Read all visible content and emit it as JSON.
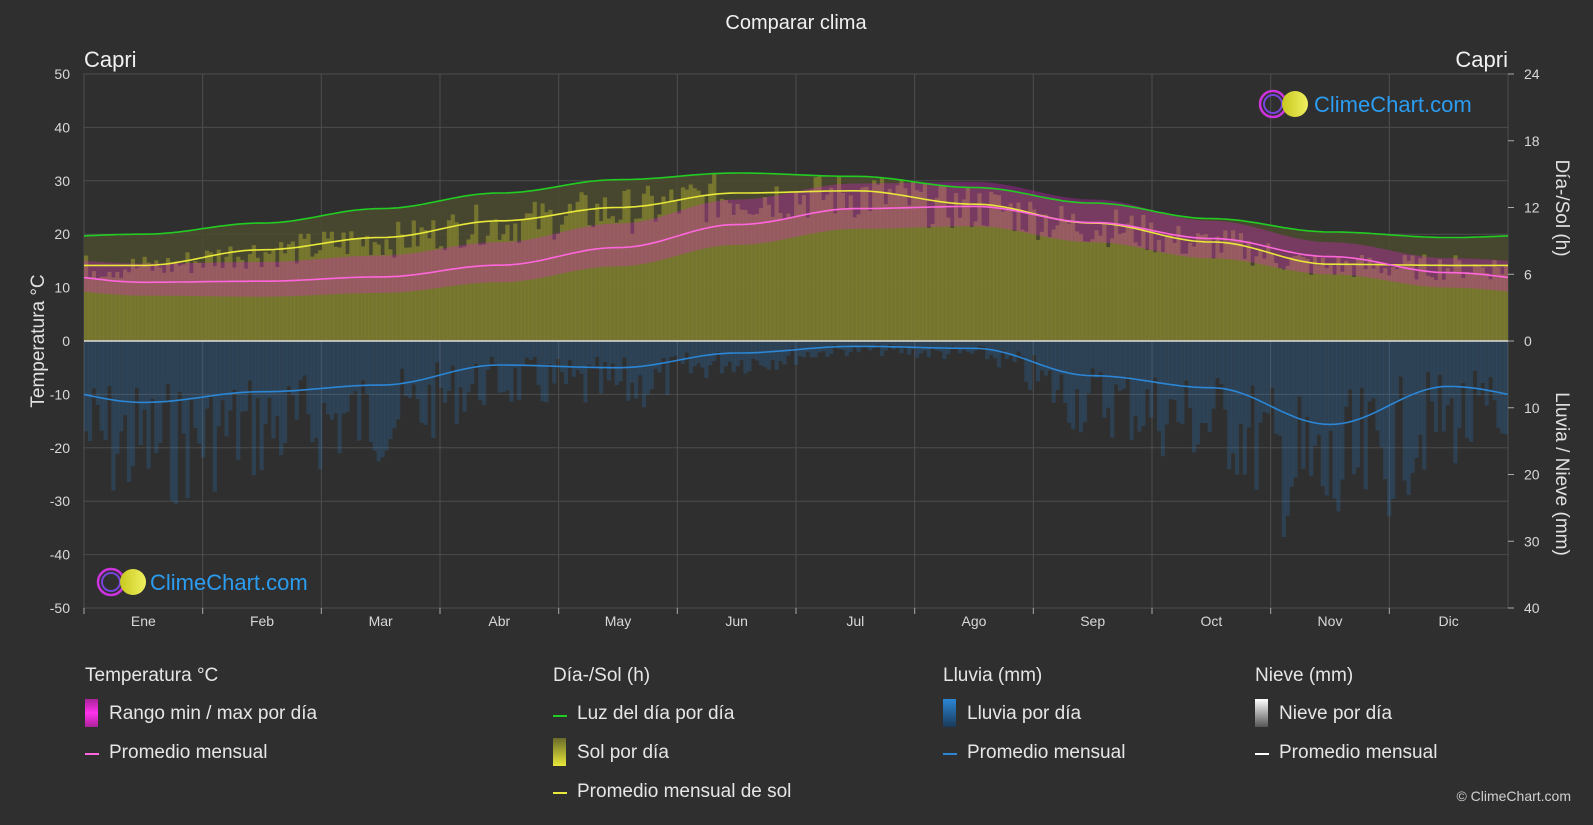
{
  "chart_data": {
    "type": "area",
    "title": "Comparar clima",
    "location_left": "Capri",
    "location_right": "Capri",
    "ylabel_left": "Temperatura °C",
    "ylabel_right_top": "Día-/Sol (h)",
    "ylabel_right_bottom": "Lluvia / Nieve (mm)",
    "categories": [
      "Ene",
      "Feb",
      "Mar",
      "Abr",
      "May",
      "Jun",
      "Jul",
      "Ago",
      "Sep",
      "Oct",
      "Nov",
      "Dic"
    ],
    "y_left": {
      "min": -50,
      "max": 50,
      "ticks": [
        50,
        40,
        30,
        20,
        10,
        0,
        -10,
        -20,
        -30,
        -40,
        -50
      ]
    },
    "y_right_sun": {
      "min": 0,
      "max": 24,
      "ticks": [
        24,
        18,
        12,
        6,
        0
      ]
    },
    "y_right_rain": {
      "min": 0,
      "max": 40,
      "ticks": [
        0,
        10,
        20,
        30,
        40
      ]
    },
    "grid": true,
    "series": [
      {
        "key": "daylight",
        "values": [
          9.6,
          10.6,
          11.9,
          13.3,
          14.5,
          15.1,
          14.8,
          13.8,
          12.4,
          11.0,
          9.8,
          9.3
        ]
      },
      {
        "key": "sunshine",
        "values": [
          6.8,
          8.2,
          9.3,
          10.8,
          12.0,
          13.3,
          13.5,
          12.3,
          10.6,
          8.9,
          6.9,
          6.8
        ]
      },
      {
        "key": "temp_avg",
        "values": [
          11.0,
          11.2,
          12.0,
          14.2,
          17.5,
          21.8,
          24.8,
          25.2,
          22.2,
          19.2,
          15.8,
          12.8
        ]
      },
      {
        "key": "temp_max",
        "values": [
          14.5,
          14.8,
          16.0,
          18.5,
          22.0,
          26.5,
          29.5,
          29.8,
          26.5,
          22.5,
          18.5,
          15.5
        ]
      },
      {
        "key": "temp_min",
        "values": [
          8.5,
          8.3,
          9.0,
          11.0,
          14.0,
          18.0,
          21.0,
          21.5,
          18.5,
          15.5,
          12.5,
          10.0
        ]
      },
      {
        "key": "rain_avg_mm",
        "values": [
          9.2,
          7.6,
          6.6,
          3.6,
          4.0,
          1.8,
          0.8,
          1.1,
          5.2,
          7.0,
          12.5,
          6.8
        ]
      }
    ]
  },
  "legend": {
    "temp": {
      "title": "Temperatura °C",
      "range": "Rango min / max por día",
      "avg": "Promedio mensual"
    },
    "sun": {
      "title": "Día-/Sol (h)",
      "daylight": "Luz del día por día",
      "sun": "Sol por día",
      "avg": "Promedio mensual de sol"
    },
    "rain": {
      "title": "Lluvia (mm)",
      "day": "Lluvia por día",
      "avg": "Promedio mensual"
    },
    "snow": {
      "title": "Nieve (mm)",
      "day": "Nieve por día",
      "avg": "Promedio mensual"
    }
  },
  "watermark": "ClimeChart.com",
  "copyright": "© ClimeChart.com",
  "colors": {
    "background": "#2f2f2f",
    "daylight": "#22cc22",
    "sunshine": "#e8e83a",
    "temperature": "#ff66dd",
    "temp_range": "#dd22cc",
    "rain": "#2b86d6",
    "snow": "#ffffff",
    "brand": "#2b9cf0"
  }
}
